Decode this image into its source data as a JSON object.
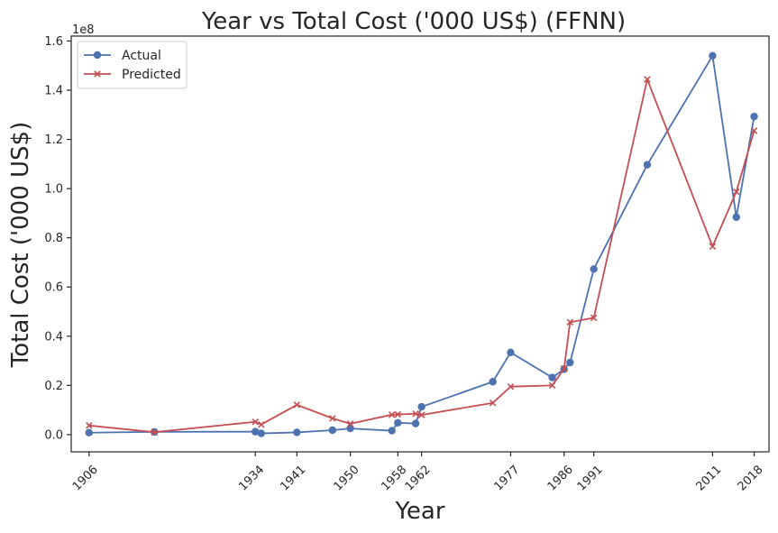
{
  "chart_data": {
    "type": "line",
    "title": "Year vs Total Cost ('000 US$) (FFNN)",
    "xlabel": "Year",
    "ylabel": "Total Cost ('000 US$)",
    "y_offset_text": "1e8",
    "xlim": [
      1903,
      2020.5
    ],
    "ylim": [
      -0.07,
      1.62
    ],
    "x_ticks": [
      1906,
      1934,
      1941,
      1950,
      1958,
      1962,
      1977,
      1986,
      1991,
      2011,
      2018
    ],
    "y_ticks": [
      0.0,
      0.2,
      0.4,
      0.6,
      0.8,
      1.0,
      1.2,
      1.4,
      1.6
    ],
    "y_tick_labels": [
      "0.0",
      "0.2",
      "0.4",
      "0.6",
      "0.8",
      "1.0",
      "1.2",
      "1.4",
      "1.6"
    ],
    "grid": false,
    "legend_position": "upper left",
    "series": [
      {
        "name": "Actual",
        "color": "#4c72b0",
        "marker": "circle",
        "x": [
          1906,
          1917,
          1934,
          1935,
          1941,
          1947,
          1950,
          1957,
          1958,
          1961,
          1962,
          1974,
          1977,
          1984,
          1986,
          1987,
          1991,
          2000,
          2011,
          2015,
          2018
        ],
        "y": [
          0.008,
          0.011,
          0.012,
          0.005,
          0.009,
          0.018,
          0.025,
          0.016,
          0.048,
          0.045,
          0.113,
          0.215,
          0.334,
          0.232,
          0.266,
          0.293,
          0.673,
          1.097,
          1.54,
          0.884,
          1.293
        ]
      },
      {
        "name": "Predicted",
        "color": "#c44e52",
        "marker": "x",
        "x": [
          1906,
          1917,
          1934,
          1935,
          1941,
          1947,
          1950,
          1957,
          1958,
          1961,
          1962,
          1974,
          1977,
          1984,
          1986,
          1987,
          1991,
          2000,
          2011,
          2015,
          2018
        ],
        "y": [
          0.037,
          0.01,
          0.052,
          0.041,
          0.121,
          0.066,
          0.044,
          0.081,
          0.082,
          0.085,
          0.08,
          0.129,
          0.195,
          0.2,
          0.268,
          0.457,
          0.475,
          1.444,
          0.765,
          0.987,
          1.235
        ]
      }
    ]
  }
}
